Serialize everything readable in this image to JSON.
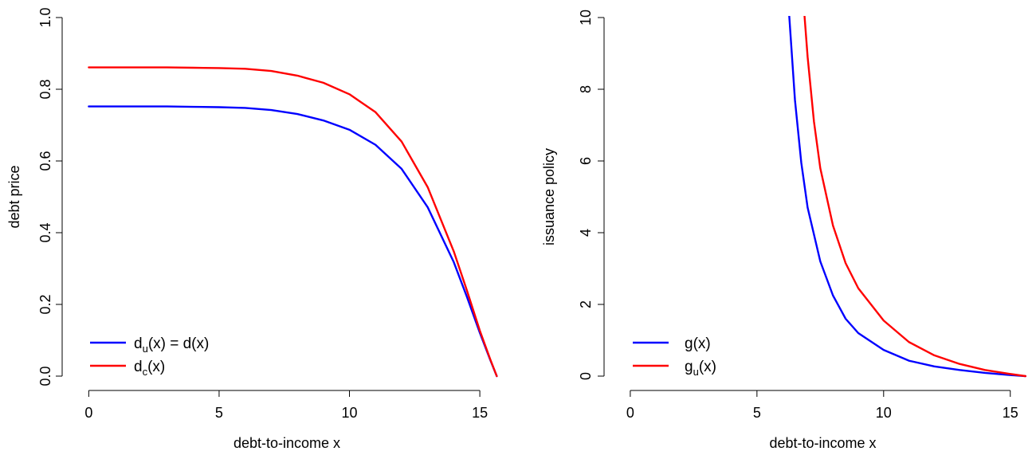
{
  "chart_data": [
    {
      "type": "line",
      "xlabel": "debt-to-income x",
      "ylabel": "debt price",
      "xlim": [
        -0.5,
        15.7
      ],
      "ylim": [
        0,
        1
      ],
      "x_ticks": [
        "0",
        "5",
        "10",
        "15"
      ],
      "y_ticks": [
        "0.0",
        "0.2",
        "0.4",
        "0.6",
        "0.8",
        "1.0"
      ],
      "legend": {
        "position": "bottom-left"
      },
      "series": [
        {
          "name": "d_u(x) = d(x)",
          "label_parts": [
            "d",
            "u",
            "(x) = d(x)"
          ],
          "color": "#0000ff",
          "points": [
            [
              0,
              0.752
            ],
            [
              1,
              0.752
            ],
            [
              2,
              0.752
            ],
            [
              3,
              0.752
            ],
            [
              4,
              0.751
            ],
            [
              5,
              0.75
            ],
            [
              6,
              0.748
            ],
            [
              7,
              0.742
            ],
            [
              8,
              0.731
            ],
            [
              9,
              0.713
            ],
            [
              10,
              0.687
            ],
            [
              11,
              0.645
            ],
            [
              12,
              0.578
            ],
            [
              13,
              0.471
            ],
            [
              14,
              0.318
            ],
            [
              14.5,
              0.222
            ],
            [
              15,
              0.121
            ],
            [
              15.4,
              0.045
            ],
            [
              15.65,
              0
            ]
          ]
        },
        {
          "name": "d_c(x)",
          "label_parts": [
            "d",
            "c",
            "(x)"
          ],
          "color": "#ff0000",
          "points": [
            [
              0,
              0.861
            ],
            [
              1,
              0.861
            ],
            [
              2,
              0.861
            ],
            [
              3,
              0.861
            ],
            [
              4,
              0.86
            ],
            [
              5,
              0.859
            ],
            [
              6,
              0.857
            ],
            [
              7,
              0.851
            ],
            [
              8,
              0.838
            ],
            [
              9,
              0.818
            ],
            [
              10,
              0.786
            ],
            [
              11,
              0.736
            ],
            [
              12,
              0.654
            ],
            [
              13,
              0.527
            ],
            [
              14,
              0.348
            ],
            [
              14.5,
              0.24
            ],
            [
              15,
              0.127
            ],
            [
              15.4,
              0.047
            ],
            [
              15.65,
              0
            ]
          ]
        }
      ]
    },
    {
      "type": "line",
      "xlabel": "debt-to-income x",
      "ylabel": "issuance policy",
      "xlim": [
        -0.5,
        15.7
      ],
      "ylim": [
        0,
        10
      ],
      "x_ticks": [
        "0",
        "5",
        "10",
        "15"
      ],
      "y_ticks": [
        "0",
        "2",
        "4",
        "6",
        "8",
        "10"
      ],
      "legend": {
        "position": "bottom-left"
      },
      "series": [
        {
          "name": "g(x)",
          "label_parts": [
            "g",
            "",
            "(x)"
          ],
          "color": "#0000ff",
          "points": [
            [
              6.25,
              10.3
            ],
            [
              6.5,
              7.7
            ],
            [
              6.75,
              5.95
            ],
            [
              7,
              4.7
            ],
            [
              7.5,
              3.2
            ],
            [
              8,
              2.25
            ],
            [
              8.5,
              1.6
            ],
            [
              9,
              1.2
            ],
            [
              10,
              0.73
            ],
            [
              11,
              0.43
            ],
            [
              12,
              0.27
            ],
            [
              13,
              0.17
            ],
            [
              14,
              0.09
            ],
            [
              15,
              0.03
            ],
            [
              15.6,
              0
            ]
          ]
        },
        {
          "name": "g_u(x)",
          "label_parts": [
            "g",
            "u",
            "(x)"
          ],
          "color": "#ff0000",
          "points": [
            [
              6.85,
              10.3
            ],
            [
              7,
              8.9
            ],
            [
              7.25,
              7.1
            ],
            [
              7.5,
              5.8
            ],
            [
              8,
              4.2
            ],
            [
              8.5,
              3.15
            ],
            [
              9,
              2.45
            ],
            [
              10,
              1.55
            ],
            [
              11,
              0.95
            ],
            [
              12,
              0.58
            ],
            [
              13,
              0.34
            ],
            [
              14,
              0.17
            ],
            [
              15,
              0.06
            ],
            [
              15.6,
              0
            ]
          ]
        }
      ]
    }
  ]
}
